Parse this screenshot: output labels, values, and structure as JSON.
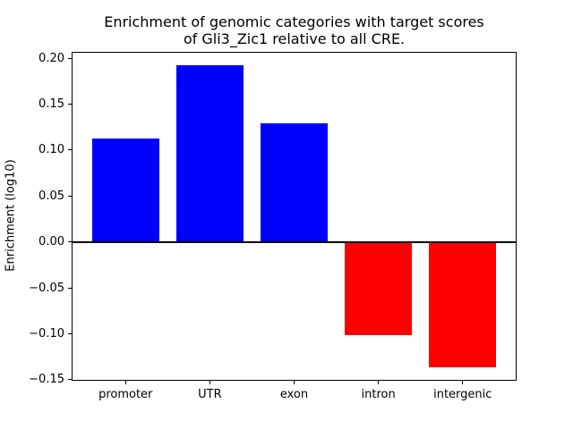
{
  "figure": {
    "title_lines": [
      "Enrichment of genomic categories with target scores",
      "of Gli3_Zic1 relative to all CRE."
    ],
    "ylabel": "Enrichment (log10)"
  },
  "chart_data": {
    "type": "bar",
    "title": "Enrichment of genomic categories with target scores\nof Gli3_Zic1 relative to all CRE.",
    "xlabel": "",
    "ylabel": "Enrichment (log10)",
    "categories": [
      "promoter",
      "UTR",
      "exon",
      "intron",
      "intergenic"
    ],
    "values": [
      0.113,
      0.192,
      0.129,
      -0.101,
      -0.136
    ],
    "positive_color": "#0000ff",
    "negative_color": "#ff0000",
    "axis_color": "#000000",
    "background_color": "#ffffff",
    "ylim": [
      -0.151,
      0.207
    ],
    "yticks": [
      0.2,
      0.15,
      0.1,
      0.05,
      0.0,
      -0.05,
      -0.1,
      -0.15
    ],
    "ytick_labels": [
      "0.20",
      "0.15",
      "0.10",
      "0.05",
      "0.00",
      "−0.05",
      "−0.10",
      "−0.15"
    ],
    "grid": false,
    "legend": false,
    "zero_line": true,
    "bar_width_fraction": 0.8
  }
}
